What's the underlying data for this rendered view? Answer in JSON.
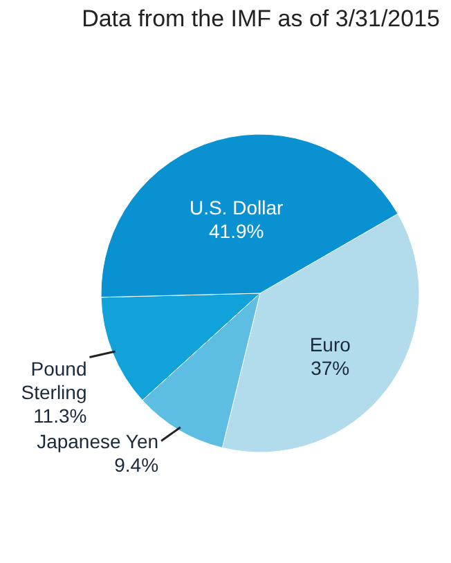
{
  "chart_data": {
    "type": "pie",
    "title": "Data from the IMF as of 3/31/2015",
    "categories": [
      "Euro",
      "Japanese Yen",
      "Pound Sterling",
      "U.S. Dollar"
    ],
    "values": [
      37,
      9.4,
      11.3,
      41.9
    ],
    "value_labels": [
      "37%",
      "9.4%",
      "11.3%",
      "41.9%"
    ],
    "colors": [
      "#b2dcec",
      "#5dbde3",
      "#10a2d8",
      "#0991d2"
    ]
  }
}
